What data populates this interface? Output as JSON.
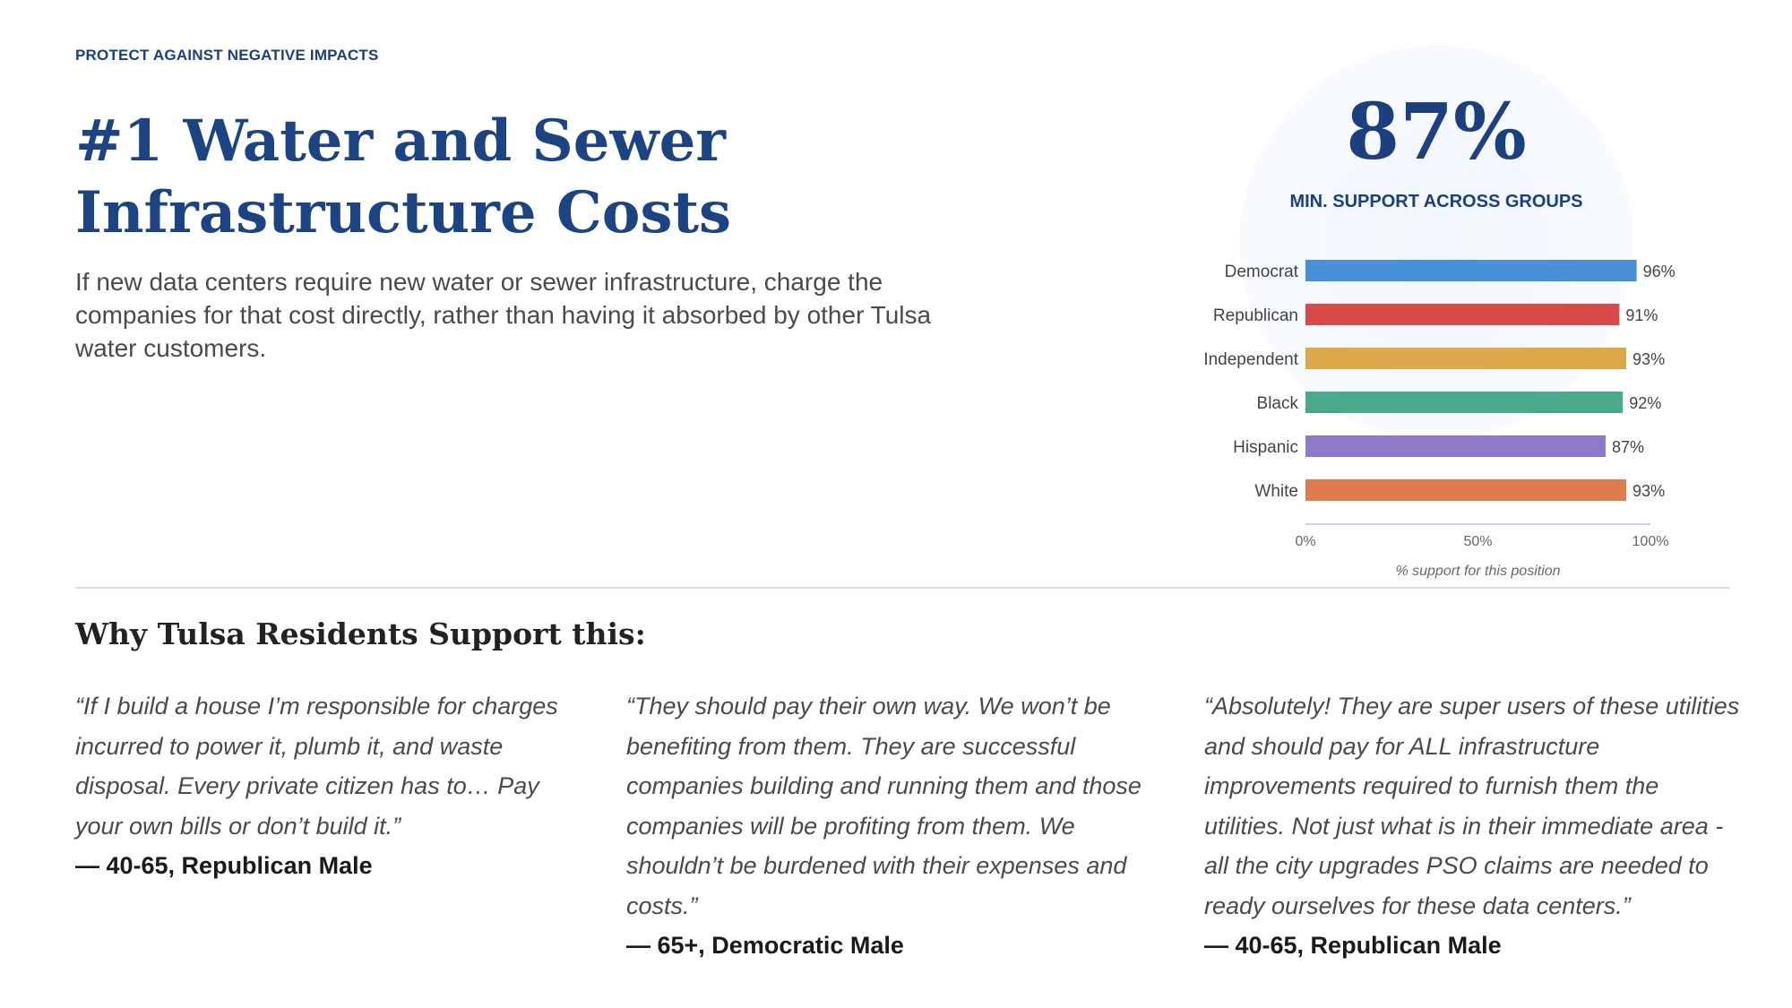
{
  "header": {
    "eyebrow": "PROTECT AGAINST NEGATIVE IMPACTS",
    "title_line1": "#1 Water and Sewer",
    "title_line2": "Infrastructure Costs",
    "description": "If new data centers require new water or sewer infrastructure, charge the companies for that cost directly, rather than having it absorbed by other Tulsa water customers."
  },
  "stat": {
    "value": "87%",
    "label": "MIN. SUPPORT ACROSS GROUPS"
  },
  "chart_data": {
    "type": "bar",
    "orientation": "horizontal",
    "categories": [
      "Democrat",
      "Republican",
      "Independent",
      "Black",
      "Hispanic",
      "White"
    ],
    "values": [
      96,
      91,
      93,
      92,
      87,
      93
    ],
    "value_labels": [
      "96%",
      "91%",
      "93%",
      "92%",
      "87%",
      "93%"
    ],
    "colors": [
      "#4a90d9",
      "#d94a4a",
      "#dba94a",
      "#4aa98b",
      "#8e7ac8",
      "#e07b4d"
    ],
    "xlim": [
      0,
      100
    ],
    "xticks": [
      "0%",
      "50%",
      "100%"
    ],
    "xlabel": "% support for this position",
    "grid": false
  },
  "section": {
    "heading": "Why Tulsa Residents Support this:"
  },
  "quotes": [
    {
      "lines": [
        "“If I build a house I’m responsible for charges",
        "incurred to power it, plumb it, and waste",
        "disposal. Every private citizen has to… Pay",
        "your own bills or don’t build it.”"
      ],
      "attribution": "— 40-65, Republican Male"
    },
    {
      "lines": [
        "“They should pay their own way. We won’t be",
        "benefiting from them. They are successful",
        "companies building and running them and those",
        "companies will be profiting from them. We",
        "shouldn’t be burdened with their expenses and",
        "costs.”"
      ],
      "attribution": "— 65+, Democratic Male"
    },
    {
      "lines": [
        "“Absolutely! They are super users of these utilities",
        "and should pay for ALL infrastructure",
        "improvements required to furnish them the",
        "utilities. Not just what is in their immediate area -",
        "all the city upgrades PSO claims are needed to",
        "ready ourselves for these data centers.”"
      ],
      "attribution": "— 40-65, Republican Male"
    }
  ]
}
